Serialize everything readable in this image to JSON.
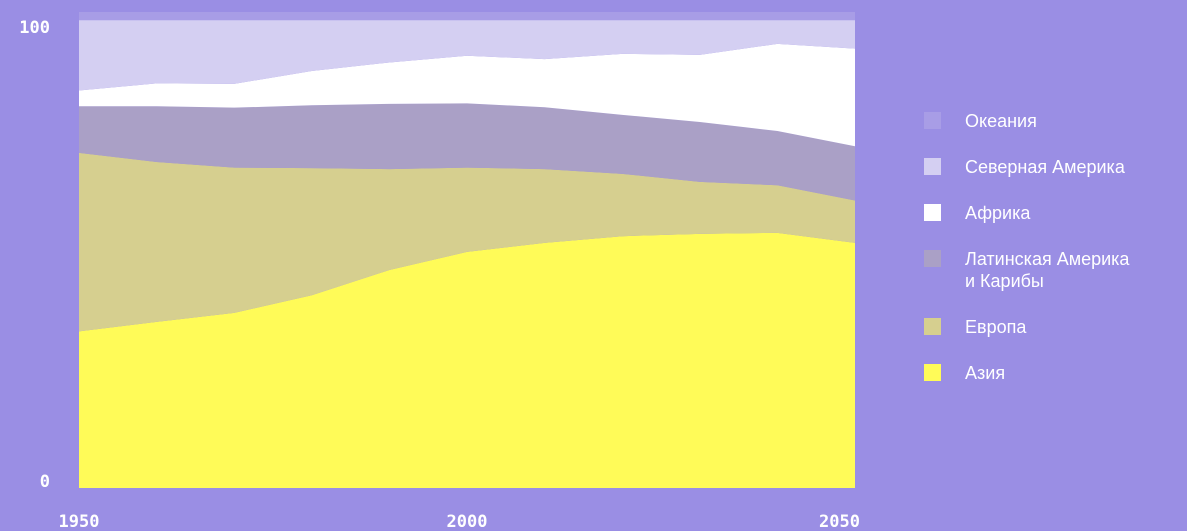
{
  "chart_data": {
    "type": "stacked-area",
    "x": [
      1950,
      1960,
      1970,
      1980,
      1990,
      2000,
      2010,
      2020,
      2030,
      2040,
      2050
    ],
    "xlim": [
      1950,
      2050
    ],
    "xticks": [
      1950,
      2000,
      2050
    ],
    "ylim": [
      0,
      100
    ],
    "yticks": [
      0,
      100
    ],
    "series": [
      {
        "name": "Океания",
        "color": "#a89de6",
        "values": [
          1.7,
          1.7,
          1.7,
          1.7,
          1.7,
          1.7,
          1.7,
          1.7,
          1.7,
          1.7,
          1.7
        ]
      },
      {
        "name": "Северная Америка",
        "color": "#d4cff2",
        "values": [
          14.8,
          13.3,
          13.4,
          10.7,
          8.9,
          7.5,
          8.2,
          7.1,
          7.3,
          5.0,
          6.0
        ]
      },
      {
        "name": "Африка",
        "color": "#ffffff",
        "values": [
          3.3,
          4.8,
          5.0,
          7.2,
          8.7,
          10.0,
          10.1,
          12.8,
          14.1,
          18.3,
          20.5
        ]
      },
      {
        "name": "Латинская Америка и Карибы",
        "color": "#aaa0c6",
        "values": [
          9.8,
          11.7,
          12.6,
          13.2,
          13.7,
          13.5,
          13.0,
          12.4,
          12.6,
          11.4,
          11.4
        ]
      },
      {
        "name": "Европа",
        "color": "#d6cf8f",
        "values": [
          37.5,
          33.6,
          30.5,
          26.7,
          21.2,
          17.7,
          15.5,
          13.1,
          10.9,
          10.0,
          8.9
        ]
      },
      {
        "name": "Азия",
        "color": "#fffb58",
        "values": [
          32.9,
          34.9,
          36.8,
          40.5,
          45.8,
          49.6,
          51.5,
          52.9,
          53.4,
          53.6,
          51.5
        ]
      }
    ]
  }
}
